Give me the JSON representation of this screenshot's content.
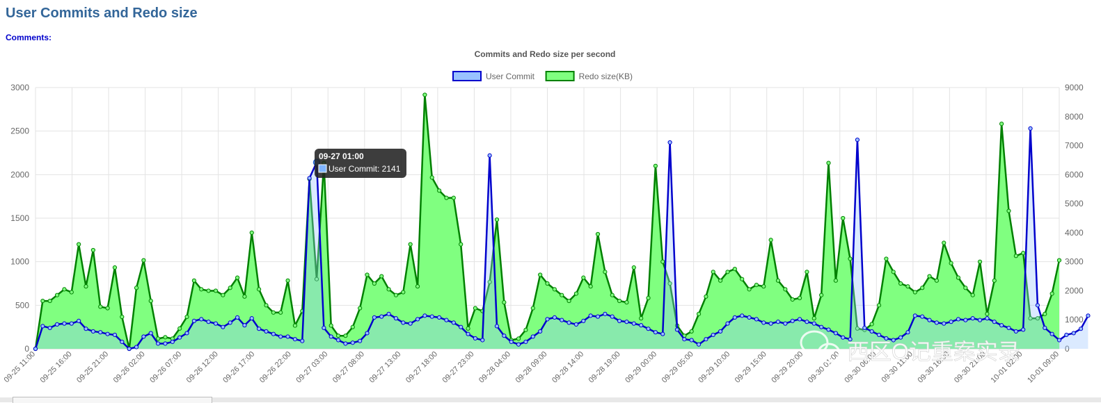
{
  "page": {
    "title": "User Commits and Redo size",
    "comments_label": "Comments:"
  },
  "tooltip": {
    "title": "09-27 01:00",
    "label": "User Commit: 2141",
    "series_color": "#7fb5ff"
  },
  "watermark": {
    "text": "西区O记重案实录",
    "icon": "wechat-icon"
  },
  "chart_data": {
    "type": "line",
    "title": "Commits and Redo size per second",
    "grid": true,
    "legend": "top-center",
    "y_left": {
      "min": 0,
      "max": 3000,
      "ticks": [
        "0",
        "500",
        "1000",
        "1500",
        "2000",
        "2500",
        "3000"
      ]
    },
    "y_right": {
      "min": 0,
      "max": 9000,
      "ticks": [
        "0",
        "1000",
        "2000",
        "3000",
        "4000",
        "5000",
        "6000",
        "7000",
        "8000",
        "9000"
      ]
    },
    "x_tick_labels": [
      "09-25 11:00",
      "09-25 16:00",
      "09-25 21:00",
      "09-26 02:00",
      "09-26 07:00",
      "09-26 12:00",
      "09-26 17:00",
      "09-26 22:00",
      "09-27 03:00",
      "09-27 08:00",
      "09-27 13:00",
      "09-27 18:00",
      "09-27 23:00",
      "09-28 04:00",
      "09-28 09:00",
      "09-28 14:00",
      "09-28 19:00",
      "09-29 00:00",
      "09-29 05:00",
      "09-29 10:00",
      "09-29 15:00",
      "09-29 20:00",
      "09-30 01:00",
      "09-30 06:00",
      "09-30 11:00",
      "09-30 16:00",
      "09-30 21:00",
      "10-01 02:00",
      "10-01 09:00"
    ],
    "series": [
      {
        "name": "Redo size(KB)",
        "axis": "right",
        "color": "#008000",
        "fill": "#80ff80",
        "values": [
          0,
          1650,
          1650,
          1850,
          2050,
          1950,
          3600,
          2150,
          3400,
          1450,
          1400,
          2800,
          1100,
          0,
          2100,
          3050,
          1650,
          350,
          400,
          350,
          700,
          1100,
          2350,
          2050,
          2000,
          2000,
          1850,
          2100,
          2450,
          1800,
          4000,
          2050,
          1500,
          1250,
          1250,
          2350,
          800,
          1300,
          5850,
          2400,
          6400,
          800,
          450,
          450,
          750,
          1400,
          2550,
          2250,
          2500,
          2050,
          1850,
          1950,
          3600,
          2150,
          8750,
          5900,
          5450,
          5200,
          5200,
          3600,
          700,
          1400,
          1300,
          2300,
          4450,
          1600,
          300,
          350,
          650,
          1400,
          2550,
          2250,
          2050,
          1850,
          1650,
          1900,
          2450,
          2150,
          3950,
          2650,
          1850,
          1650,
          1600,
          2800,
          1050,
          1750,
          6300,
          3000,
          2250,
          800,
          450,
          600,
          1200,
          1800,
          2650,
          2350,
          2650,
          2750,
          2400,
          2050,
          2200,
          2150,
          3750,
          2350,
          2050,
          1700,
          1750,
          2650,
          1050,
          1850,
          6400,
          2350,
          4500,
          3100,
          700,
          650,
          850,
          1500,
          3100,
          2650,
          2250,
          2150,
          1950,
          2100,
          2500,
          2350,
          3650,
          2950,
          2450,
          2100,
          1850,
          3000,
          1200,
          2350,
          7750,
          4750,
          3200,
          3300,
          1050,
          1050,
          1200,
          1900,
          3050
        ]
      },
      {
        "name": "User Commit",
        "axis": "left",
        "color": "#0000cc",
        "fill": "#99c2ff",
        "values": [
          0,
          260,
          240,
          280,
          290,
          290,
          320,
          230,
          200,
          190,
          170,
          160,
          80,
          0,
          20,
          140,
          180,
          60,
          60,
          80,
          130,
          180,
          320,
          340,
          310,
          290,
          250,
          300,
          360,
          270,
          350,
          230,
          200,
          170,
          140,
          140,
          110,
          90,
          1960,
          2141,
          240,
          140,
          100,
          60,
          70,
          90,
          180,
          360,
          370,
          400,
          350,
          300,
          290,
          340,
          380,
          370,
          360,
          330,
          300,
          250,
          170,
          120,
          100,
          2220,
          260,
          150,
          80,
          50,
          80,
          140,
          200,
          340,
          360,
          330,
          300,
          280,
          320,
          380,
          370,
          400,
          370,
          320,
          310,
          290,
          270,
          230,
          190,
          170,
          2370,
          220,
          110,
          100,
          50,
          110,
          160,
          200,
          290,
          360,
          380,
          360,
          340,
          300,
          290,
          310,
          290,
          320,
          340,
          310,
          290,
          250,
          220,
          180,
          130,
          110,
          2400,
          240,
          200,
          160,
          120,
          100,
          130,
          190,
          380,
          370,
          330,
          300,
          290,
          310,
          340,
          330,
          350,
          330,
          350,
          310,
          270,
          240,
          200,
          220,
          2530,
          500,
          240,
          170,
          100,
          160,
          180,
          230,
          380
        ]
      }
    ]
  }
}
